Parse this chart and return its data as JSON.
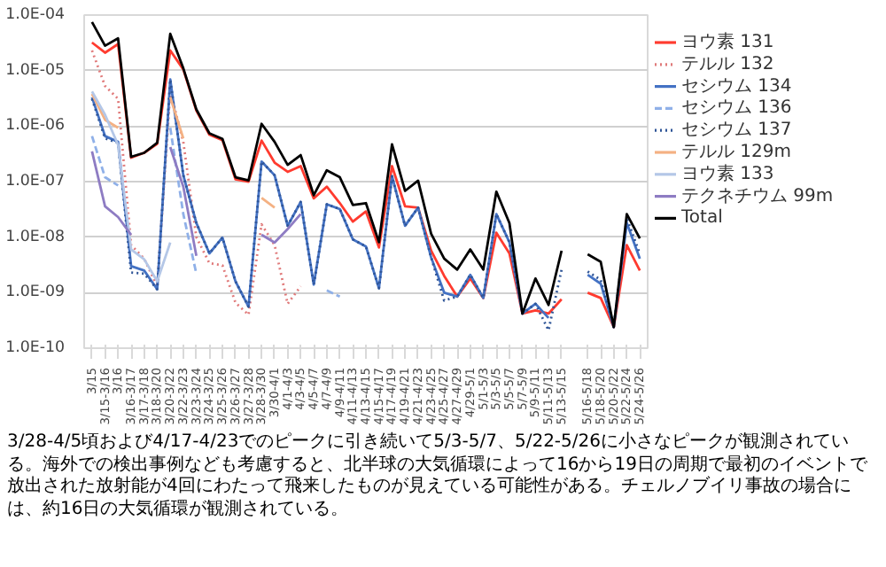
{
  "chart_data": {
    "type": "line",
    "log": "y",
    "grid": "y",
    "legend": "right",
    "marker": "none",
    "categories": [
      "3/15",
      "3/15-3/16",
      "3/16",
      "3/16-3/17",
      "3/17-3/18",
      "3/18-3/20",
      "3/20-3/22",
      "3/22-3/23",
      "3/23-3/24",
      "3/24-3/25",
      "3/25-3/26",
      "3/26-3/27",
      "3/27-3/28",
      "3/28-3/30",
      "3/30-4/1",
      "4/1-4/3",
      "4/3-4/5",
      "4/5-4/7",
      "4/7-4/9",
      "4/9-4/11",
      "4/11-4/13",
      "4/13-4/15",
      "4/15-4/17",
      "4/17-4/19",
      "4/19-4/21",
      "4/21-4/23",
      "4/23-4/25",
      "4/25-4/27",
      "4/27-4/29",
      "4/29-5/1",
      "5/1-5/3",
      "5/3-5/5",
      "5/5-5/7",
      "5/7-5/9",
      "5/9-5/11",
      "5/11-5/13",
      "5/13-5/15",
      null,
      "5/16-5/18",
      "5/18-5/20",
      "5/20-5/22",
      "5/22-5/24",
      "5/24-5/26"
    ],
    "ylim": [
      1e-10,
      0.0001
    ],
    "yticks": [
      {
        "value": 1e-10,
        "label": "1.0E-10"
      },
      {
        "value": 1e-09,
        "label": "1.0E-09"
      },
      {
        "value": 1e-08,
        "label": "1.0E-08"
      },
      {
        "value": 1e-07,
        "label": "1.0E-07"
      },
      {
        "value": 1e-06,
        "label": "1.0E-06"
      },
      {
        "value": 1e-05,
        "label": "1.0E-05"
      },
      {
        "value": 0.0001,
        "label": "1.0E-04"
      }
    ],
    "series": [
      {
        "name": "ヨウ素 131",
        "color": "#ff3b2f",
        "line_style": "solid",
        "values": [
          3.2e-05,
          2.1e-05,
          3e-05,
          2.7e-07,
          3.3e-07,
          4.8e-07,
          2.3e-05,
          1.05e-05,
          1.9e-06,
          7e-07,
          5.6e-07,
          1.1e-07,
          1e-07,
          5.5e-07,
          2.2e-07,
          1.5e-07,
          1.9e-07,
          5e-08,
          8.1e-08,
          4.1e-08,
          1.9e-08,
          2.9e-08,
          6.5e-09,
          1.9e-07,
          3.6e-08,
          3.4e-08,
          5.7e-09,
          2e-09,
          8.5e-10,
          1.8e-09,
          8e-10,
          1.2e-08,
          5.1e-09,
          4.2e-10,
          4.8e-10,
          4.2e-10,
          7.6e-10,
          null,
          1e-09,
          8e-10,
          2.4e-10,
          7.2e-09,
          2.5e-09
        ]
      },
      {
        "name": "テルル 132",
        "color": "#e07a7a",
        "line_style": "dotted",
        "values": [
          2.3e-05,
          5.3e-06,
          3.1e-06,
          7.2e-09,
          4.1e-09,
          1.3e-09,
          4.2e-06,
          5.2e-07,
          1e-08,
          3.4e-09,
          3.1e-09,
          6.6e-10,
          4e-10,
          1.7e-08,
          7.2e-09,
          6.3e-10,
          1.3e-09,
          null,
          null,
          null,
          null,
          null,
          null,
          null,
          null,
          null,
          null,
          null,
          null,
          null,
          null,
          null,
          null,
          null,
          null,
          null,
          null,
          null,
          null,
          null,
          null,
          null,
          null
        ]
      },
      {
        "name": "セシウム 134",
        "color": "#4472c4",
        "line_style": "solid",
        "values": [
          3.3e-06,
          6.6e-07,
          5.2e-07,
          3e-09,
          2.5e-09,
          1.15e-09,
          6.9e-06,
          1.3e-07,
          1.8e-08,
          5.1e-09,
          9.8e-09,
          1.6e-09,
          5.6e-10,
          2.3e-07,
          1.3e-07,
          1.6e-08,
          4.3e-08,
          1.4e-09,
          3.9e-08,
          3.2e-08,
          9.1e-09,
          6.8e-09,
          1.2e-09,
          1.25e-07,
          1.6e-08,
          3.4e-08,
          4.3e-09,
          1e-09,
          8.5e-10,
          2.1e-09,
          8e-10,
          2.6e-08,
          8.1e-09,
          4.2e-10,
          6.3e-10,
          3.5e-10,
          null,
          null,
          2.1e-09,
          1.45e-09,
          2.4e-10,
          1.8e-08,
          4.1e-09
        ]
      },
      {
        "name": "セシウム 136",
        "color": "#8fb0e8",
        "line_style": "dashed",
        "values": [
          6.6e-07,
          1.2e-07,
          8.5e-08,
          null,
          null,
          null,
          9.3e-07,
          2.6e-08,
          2.2e-09,
          null,
          null,
          null,
          null,
          null,
          null,
          null,
          null,
          null,
          1.1e-09,
          8.5e-10,
          null,
          null,
          null,
          null,
          null,
          null,
          null,
          null,
          null,
          null,
          null,
          null,
          null,
          null,
          null,
          null,
          null,
          null,
          null,
          null,
          null,
          null,
          null
        ]
      },
      {
        "name": "セシウム 137",
        "color": "#2f5597",
        "line_style": "dotted",
        "values": [
          3.1e-06,
          6e-07,
          5e-07,
          2.3e-09,
          2.2e-09,
          1.15e-09,
          6.9e-06,
          1.3e-07,
          1.8e-08,
          5.1e-09,
          9.8e-09,
          1.6e-09,
          5.6e-10,
          2.3e-07,
          1.3e-07,
          1.6e-08,
          4.3e-08,
          1.4e-09,
          3.9e-08,
          3.2e-08,
          9.1e-09,
          6.8e-09,
          1.2e-09,
          1.25e-07,
          1.6e-08,
          3.4e-08,
          4.3e-09,
          7.2e-10,
          8.5e-10,
          2.1e-09,
          8e-10,
          2.6e-08,
          8.1e-09,
          4.2e-10,
          6.3e-10,
          2.1e-10,
          2.6e-09,
          null,
          2.4e-09,
          1.7e-09,
          2.4e-10,
          2.2e-08,
          5e-09
        ]
      },
      {
        "name": "テルル 129m",
        "color": "#f4b183",
        "line_style": "solid",
        "values": [
          3.8e-06,
          1.3e-06,
          9.3e-07,
          null,
          null,
          null,
          3.3e-06,
          6e-07,
          null,
          null,
          null,
          null,
          null,
          5.1e-08,
          3.4e-08,
          null,
          null,
          null,
          null,
          null,
          null,
          null,
          null,
          null,
          null,
          null,
          null,
          null,
          null,
          null,
          null,
          null,
          null,
          null,
          null,
          null,
          null,
          null,
          null,
          null,
          null,
          null,
          null
        ]
      },
      {
        "name": "ヨウ素 133",
        "color": "#b4c7e7",
        "line_style": "solid",
        "values": [
          4.2e-06,
          1.6e-06,
          4.6e-07,
          6e-09,
          4e-09,
          1.6e-09,
          8e-09,
          null,
          null,
          null,
          null,
          null,
          null,
          null,
          null,
          null,
          null,
          null,
          null,
          null,
          null,
          null,
          null,
          null,
          null,
          null,
          null,
          null,
          null,
          null,
          null,
          null,
          null,
          null,
          null,
          null,
          null,
          null,
          null,
          null,
          null,
          null,
          null
        ]
      },
      {
        "name": "テクネチウム 99m",
        "color": "#8e7cc3",
        "line_style": "solid",
        "values": [
          3.5e-07,
          3.6e-08,
          2.3e-08,
          1.1e-08,
          null,
          null,
          4.2e-07,
          8.1e-08,
          4.6e-09,
          null,
          null,
          null,
          null,
          1.1e-08,
          8e-09,
          1.4e-08,
          2.6e-08,
          null,
          null,
          null,
          null,
          null,
          null,
          null,
          null,
          null,
          null,
          null,
          null,
          null,
          null,
          null,
          null,
          null,
          null,
          null,
          null,
          null,
          null,
          null,
          null,
          null,
          null
        ]
      },
      {
        "name": "Total",
        "color": "#000000",
        "line_style": "solid",
        "values": [
          7.5e-05,
          2.8e-05,
          3.8e-05,
          2.8e-07,
          3.3e-07,
          5e-07,
          4.6e-05,
          1.1e-05,
          2e-06,
          7.4e-07,
          5.9e-07,
          1.2e-07,
          1.05e-07,
          1.1e-06,
          5.2e-07,
          2e-07,
          3e-07,
          5.7e-08,
          1.6e-07,
          1.2e-07,
          3.8e-08,
          4.1e-08,
          8.1e-09,
          4.7e-07,
          6.8e-08,
          1.04e-07,
          1.15e-08,
          4.1e-09,
          2.6e-09,
          6e-09,
          2.6e-09,
          6.6e-08,
          1.8e-08,
          4.2e-10,
          1.8e-09,
          6e-10,
          5.7e-09,
          null,
          4.9e-09,
          3.6e-09,
          2.4e-10,
          2.6e-08,
          9.5e-09
        ]
      }
    ],
    "annotations": [
      "3/28-4/5頃および4/17-4/23でのピークに引き続いて5/3-5/7、5/22-5/26に小さなピークが観測されている。海外での検出事例なども考慮すると、北半球の大気循環によって16から19日の周期で最初のイベントで放出された放射能が4回にわたって飛来したものが見えている可能性がある。チェルノブイリ事故の場合には、約16日の大気循環が観測されている。"
    ]
  }
}
